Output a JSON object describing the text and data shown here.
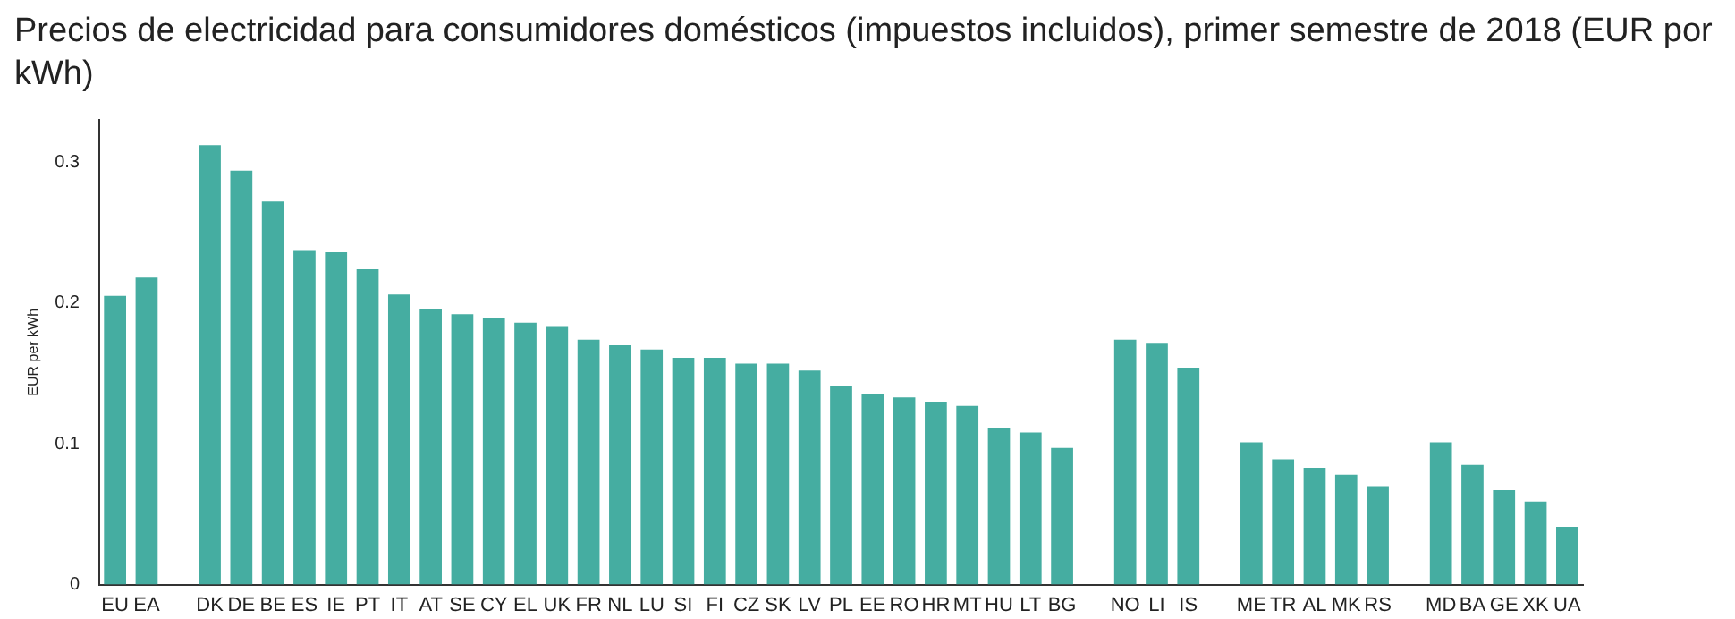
{
  "chart_data": {
    "type": "bar",
    "title": "Precios de electricidad para consumidores domésticos (impuestos incluidos), primer semestre de 2018 (EUR por kWh)",
    "ylabel": "EUR per kWh",
    "categories": [
      "EU",
      "EA",
      null,
      "DK",
      "DE",
      "BE",
      "ES",
      "IE",
      "PT",
      "IT",
      "AT",
      "SE",
      "CY",
      "EL",
      "UK",
      "FR",
      "NL",
      "LU",
      "SI",
      "FI",
      "CZ",
      "SK",
      "LV",
      "PL",
      "EE",
      "RO",
      "HR",
      "MT",
      "HU",
      "LT",
      "BG",
      null,
      "NO",
      "LI",
      "IS",
      null,
      "ME",
      "TR",
      "AL",
      "MK",
      "RS",
      null,
      "MD",
      "BA",
      "GE",
      "XK",
      "UA"
    ],
    "values": [
      0.205,
      0.218,
      null,
      0.312,
      0.294,
      0.272,
      0.237,
      0.236,
      0.224,
      0.206,
      0.196,
      0.192,
      0.189,
      0.186,
      0.183,
      0.174,
      0.17,
      0.167,
      0.161,
      0.161,
      0.157,
      0.157,
      0.152,
      0.141,
      0.135,
      0.133,
      0.13,
      0.127,
      0.111,
      0.108,
      0.097,
      null,
      0.174,
      0.171,
      0.154,
      null,
      0.101,
      0.089,
      0.083,
      0.078,
      0.07,
      null,
      0.101,
      0.085,
      0.067,
      0.059,
      0.041
    ],
    "color": "#45ada1",
    "ylim": [
      0,
      0.33
    ],
    "yticks": [
      0,
      0.1,
      0.2,
      0.3
    ],
    "grid": false,
    "legend": false
  }
}
